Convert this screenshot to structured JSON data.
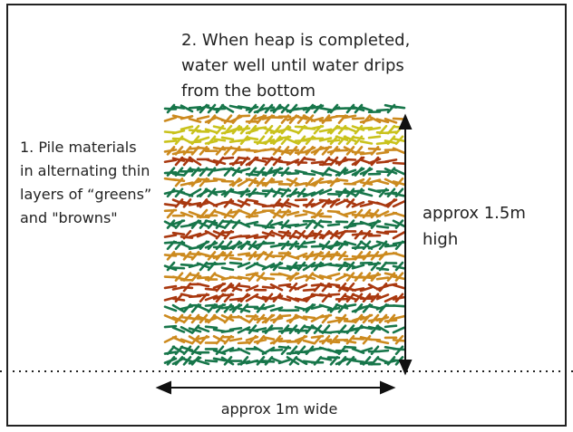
{
  "step1": {
    "lines": [
      "1. Pile materials",
      "in alternating thin",
      "layers of “greens”",
      "and \"browns\""
    ]
  },
  "step2": {
    "lines": [
      "2. When heap is completed,",
      "water well until water drips",
      "from the bottom"
    ]
  },
  "height_label": {
    "lines": [
      "approx 1.5m",
      "high"
    ]
  },
  "width_label": "approx 1m wide"
}
